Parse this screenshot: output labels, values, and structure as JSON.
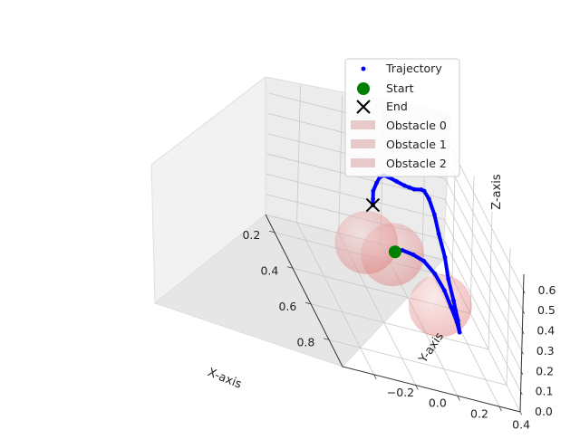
{
  "chart_data": {
    "type": "scatter",
    "projection": "3d",
    "xlabel": "X-axis",
    "ylabel": "Y-axis",
    "zlabel": "Z-axis",
    "xlim": [
      0.1,
      0.95
    ],
    "ylim": [
      -0.35,
      0.5
    ],
    "zlim": [
      0.0,
      0.68
    ],
    "xticks": [
      "0.2",
      "0.4",
      "0.6",
      "0.8"
    ],
    "yticks": [
      "−0.2",
      "0.0",
      "0.2",
      "0.4"
    ],
    "zticks": [
      "0.0",
      "0.1",
      "0.2",
      "0.3",
      "0.4",
      "0.5",
      "0.6"
    ],
    "grid": true,
    "legend": "top-right",
    "colors": {
      "trajectory": "#0000ff",
      "start": "#008000",
      "end": "#000000",
      "obstacle": "#e07a7a"
    },
    "series": [
      {
        "name": "Trajectory",
        "marker": "point",
        "points": [
          [
            0.52,
            0.08,
            0.3
          ],
          [
            0.55,
            0.1,
            0.34
          ],
          [
            0.6,
            0.13,
            0.37
          ],
          [
            0.65,
            0.16,
            0.39
          ],
          [
            0.7,
            0.19,
            0.38
          ],
          [
            0.74,
            0.22,
            0.34
          ],
          [
            0.77,
            0.24,
            0.29
          ],
          [
            0.79,
            0.26,
            0.24
          ],
          [
            0.8,
            0.27,
            0.2
          ],
          [
            0.78,
            0.27,
            0.24
          ],
          [
            0.75,
            0.26,
            0.31
          ],
          [
            0.71,
            0.25,
            0.38
          ],
          [
            0.67,
            0.25,
            0.45
          ],
          [
            0.62,
            0.24,
            0.52
          ],
          [
            0.57,
            0.24,
            0.57
          ],
          [
            0.53,
            0.23,
            0.61
          ],
          [
            0.5,
            0.22,
            0.62
          ],
          [
            0.47,
            0.22,
            0.6
          ],
          [
            0.44,
            0.2,
            0.57
          ],
          [
            0.41,
            0.19,
            0.55
          ],
          [
            0.38,
            0.18,
            0.53
          ],
          [
            0.34,
            0.16,
            0.51
          ],
          [
            0.3,
            0.14,
            0.49
          ],
          [
            0.27,
            0.13,
            0.47
          ],
          [
            0.25,
            0.12,
            0.44
          ],
          [
            0.24,
            0.11,
            0.4
          ],
          [
            0.23,
            0.1,
            0.35
          ],
          [
            0.23,
            0.1,
            0.31
          ],
          [
            0.23,
            0.1,
            0.28
          ]
        ]
      },
      {
        "name": "Start",
        "marker": "circle",
        "points": [
          [
            0.52,
            0.08,
            0.3
          ]
        ]
      },
      {
        "name": "End",
        "marker": "x",
        "points": [
          [
            0.23,
            0.1,
            0.28
          ]
        ]
      },
      {
        "name": "Obstacle 0",
        "marker": "sphere",
        "center": [
          0.45,
          0.1,
          0.23
        ],
        "radius": 0.15
      },
      {
        "name": "Obstacle 1",
        "marker": "sphere",
        "center": [
          0.7,
          0.22,
          0.23
        ],
        "radius": 0.15
      },
      {
        "name": "Obstacle 2",
        "marker": "sphere",
        "center": [
          0.35,
          0.02,
          0.18
        ],
        "radius": 0.15
      }
    ]
  }
}
